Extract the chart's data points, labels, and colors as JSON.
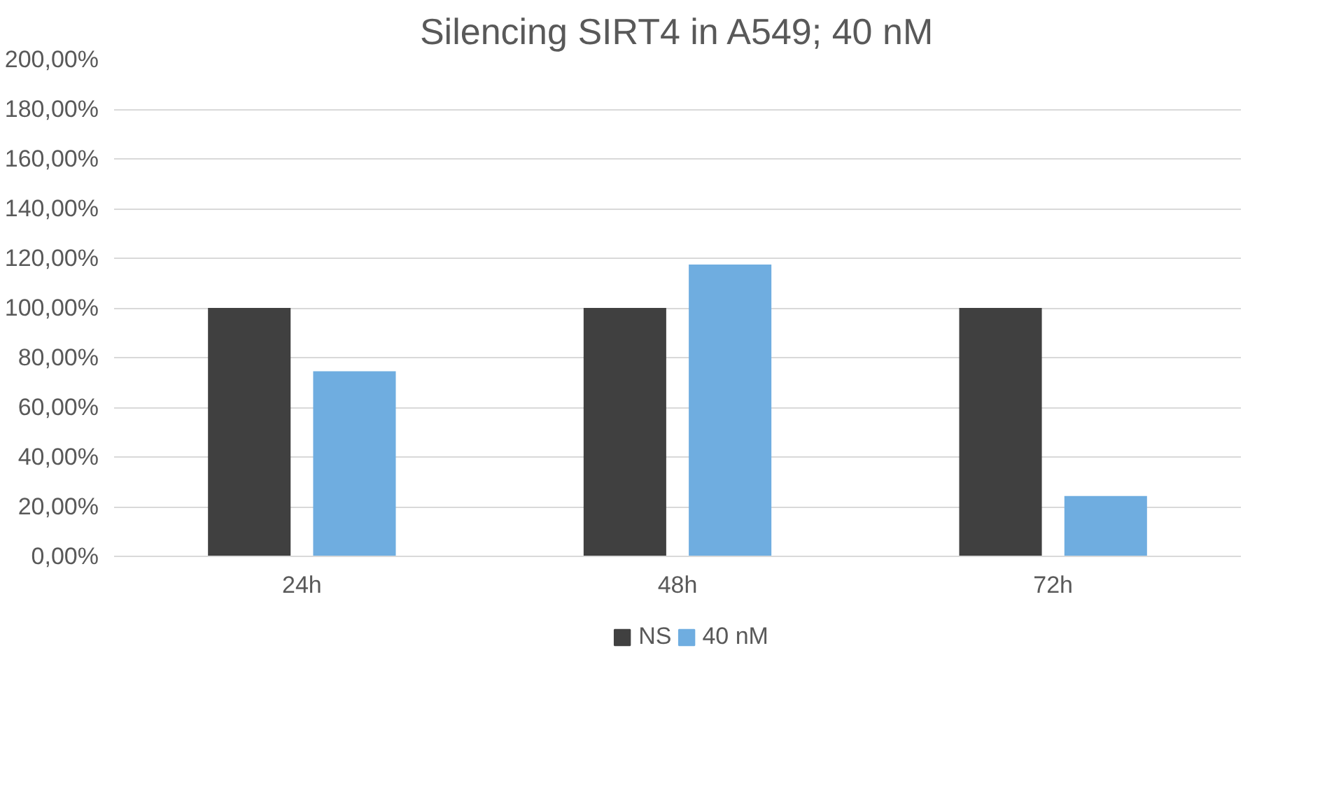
{
  "chart_data": {
    "type": "bar",
    "title": "Silencing SIRT4 in A549; 40 nM",
    "categories": [
      "24h",
      "48h",
      "72h"
    ],
    "series": [
      {
        "name": "NS",
        "color": "#404040",
        "values": [
          100,
          100,
          100
        ]
      },
      {
        "name": "40 nM",
        "color": "#6fade0",
        "values": [
          74.5,
          117.5,
          24.3
        ]
      }
    ],
    "ylim": [
      0,
      200
    ],
    "yticks": [
      {
        "value": 0,
        "label": "0,00%"
      },
      {
        "value": 20,
        "label": "20,00%"
      },
      {
        "value": 40,
        "label": "40,00%"
      },
      {
        "value": 60,
        "label": "60,00%"
      },
      {
        "value": 80,
        "label": "80,00%"
      },
      {
        "value": 100,
        "label": "100,00%"
      },
      {
        "value": 120,
        "label": "120,00%"
      },
      {
        "value": 140,
        "label": "140,00%"
      },
      {
        "value": 160,
        "label": "160,00%"
      },
      {
        "value": 180,
        "label": "180,00%"
      },
      {
        "value": 200,
        "label": "200,00%"
      }
    ],
    "grid": "y",
    "legend": "bottom"
  }
}
